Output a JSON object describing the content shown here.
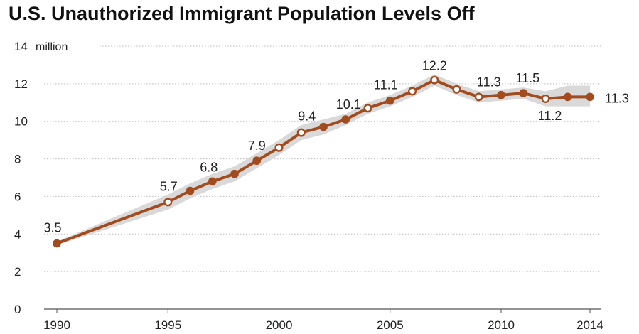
{
  "chart_data": {
    "type": "line",
    "title": "U.S. Unauthorized Immigrant Population Levels Off",
    "unit_label": "million",
    "ylim": [
      0,
      14
    ],
    "yticks": [
      0,
      2,
      4,
      6,
      8,
      10,
      12,
      14
    ],
    "xlim": [
      1990,
      2014
    ],
    "xticks": [
      1990,
      1995,
      2000,
      2005,
      2010,
      2014
    ],
    "grid": true,
    "colors": {
      "line": "#a14b1e",
      "band": "#d9d9d9",
      "grid": "#bbbbbb"
    },
    "series": [
      {
        "points": [
          {
            "x": 1990,
            "y": 3.5,
            "marker": "filled",
            "label": "3.5"
          },
          {
            "x": 1995,
            "y": 5.7,
            "marker": "open",
            "label": "5.7"
          },
          {
            "x": 1996,
            "y": 6.3,
            "marker": "filled"
          },
          {
            "x": 1997,
            "y": 6.8,
            "marker": "filled",
            "label": "6.8"
          },
          {
            "x": 1998,
            "y": 7.2,
            "marker": "filled"
          },
          {
            "x": 1999,
            "y": 7.9,
            "marker": "filled",
            "label": "7.9"
          },
          {
            "x": 2000,
            "y": 8.6,
            "marker": "open"
          },
          {
            "x": 2001,
            "y": 9.4,
            "marker": "open",
            "label": "9.4"
          },
          {
            "x": 2002,
            "y": 9.7,
            "marker": "filled"
          },
          {
            "x": 2003,
            "y": 10.1,
            "marker": "filled",
            "label": "10.1"
          },
          {
            "x": 2004,
            "y": 10.7,
            "marker": "open"
          },
          {
            "x": 2005,
            "y": 11.1,
            "marker": "filled",
            "label": "11.1"
          },
          {
            "x": 2006,
            "y": 11.6,
            "marker": "open"
          },
          {
            "x": 2007,
            "y": 12.2,
            "marker": "open",
            "label": "12.2"
          },
          {
            "x": 2008,
            "y": 11.7,
            "marker": "open"
          },
          {
            "x": 2009,
            "y": 11.3,
            "marker": "open",
            "label": "11.3"
          },
          {
            "x": 2010,
            "y": 11.4,
            "marker": "filled"
          },
          {
            "x": 2011,
            "y": 11.5,
            "marker": "filled",
            "label": "11.5"
          },
          {
            "x": 2012,
            "y": 11.2,
            "marker": "open",
            "label": "11.2"
          },
          {
            "x": 2013,
            "y": 11.3,
            "marker": "filled"
          },
          {
            "x": 2014,
            "y": 11.3,
            "marker": "filled",
            "label": "11.3"
          }
        ]
      }
    ],
    "band": [
      {
        "x": 1990,
        "lo": 3.4,
        "hi": 3.6
      },
      {
        "x": 1995,
        "lo": 5.3,
        "hi": 6.1
      },
      {
        "x": 1996,
        "lo": 5.9,
        "hi": 6.7
      },
      {
        "x": 1997,
        "lo": 6.4,
        "hi": 7.2
      },
      {
        "x": 1998,
        "lo": 6.8,
        "hi": 7.6
      },
      {
        "x": 1999,
        "lo": 7.5,
        "hi": 8.3
      },
      {
        "x": 2000,
        "lo": 8.2,
        "hi": 9.0
      },
      {
        "x": 2001,
        "lo": 9.0,
        "hi": 9.8
      },
      {
        "x": 2002,
        "lo": 9.3,
        "hi": 10.1
      },
      {
        "x": 2003,
        "lo": 9.8,
        "hi": 10.4
      },
      {
        "x": 2004,
        "lo": 10.4,
        "hi": 11.0
      },
      {
        "x": 2005,
        "lo": 10.8,
        "hi": 11.4
      },
      {
        "x": 2006,
        "lo": 11.3,
        "hi": 11.9
      },
      {
        "x": 2007,
        "lo": 11.9,
        "hi": 12.5
      },
      {
        "x": 2008,
        "lo": 11.4,
        "hi": 12.0
      },
      {
        "x": 2009,
        "lo": 11.0,
        "hi": 11.6
      },
      {
        "x": 2010,
        "lo": 11.1,
        "hi": 11.7
      },
      {
        "x": 2011,
        "lo": 11.2,
        "hi": 11.8
      },
      {
        "x": 2012,
        "lo": 10.8,
        "hi": 11.6
      },
      {
        "x": 2013,
        "lo": 10.8,
        "hi": 11.9
      },
      {
        "x": 2014,
        "lo": 10.8,
        "hi": 11.9
      }
    ]
  }
}
